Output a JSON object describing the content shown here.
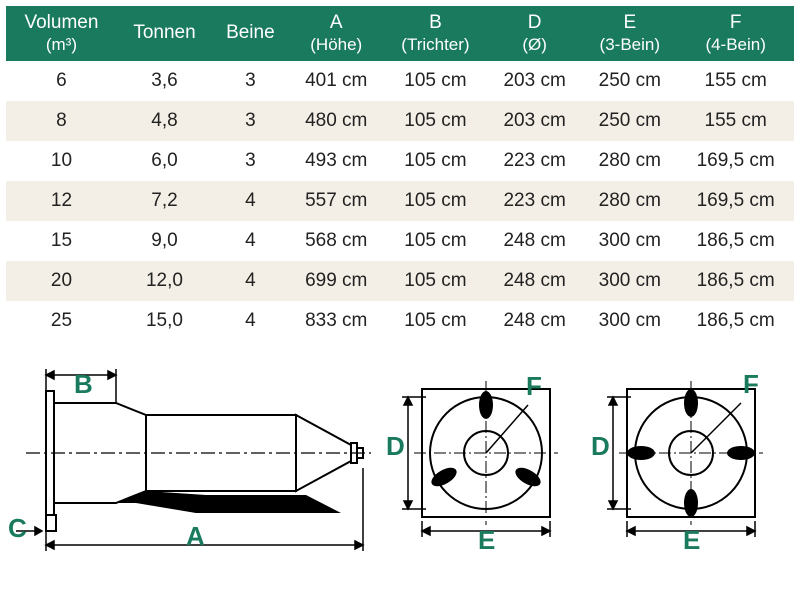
{
  "table": {
    "header_bg": "#1a7a5e",
    "header_fg": "#ffffff",
    "row_alt_bg": "#f4efe6",
    "columns": [
      {
        "title": "Volumen",
        "sub": "(m³)"
      },
      {
        "title": "Tonnen",
        "sub": ""
      },
      {
        "title": "Beine",
        "sub": ""
      },
      {
        "title": "A",
        "sub": "(Höhe)"
      },
      {
        "title": "B",
        "sub": "(Trichter)"
      },
      {
        "title": "D",
        "sub": "(Ø)"
      },
      {
        "title": "E",
        "sub": "(3-Bein)"
      },
      {
        "title": "F",
        "sub": "(4-Bein)"
      }
    ],
    "rows": [
      [
        "6",
        "3,6",
        "3",
        "401 cm",
        "105 cm",
        "203 cm",
        "250 cm",
        "155 cm"
      ],
      [
        "8",
        "4,8",
        "3",
        "480 cm",
        "105 cm",
        "203 cm",
        "250 cm",
        "155 cm"
      ],
      [
        "10",
        "6,0",
        "3",
        "493 cm",
        "105 cm",
        "223 cm",
        "280 cm",
        "169,5 cm"
      ],
      [
        "12",
        "7,2",
        "4",
        "557 cm",
        "105 cm",
        "223 cm",
        "280 cm",
        "169,5 cm"
      ],
      [
        "15",
        "9,0",
        "4",
        "568 cm",
        "105 cm",
        "248 cm",
        "300 cm",
        "186,5 cm"
      ],
      [
        "20",
        "12,0",
        "4",
        "699 cm",
        "105 cm",
        "248 cm",
        "300 cm",
        "186,5 cm"
      ],
      [
        "25",
        "15,0",
        "4",
        "833 cm",
        "105 cm",
        "248 cm",
        "300 cm",
        "186,5 cm"
      ]
    ]
  },
  "diagrams": {
    "label_color": "#1a7a5e",
    "stroke_color": "#000000",
    "labels": {
      "A": "A",
      "B": "B",
      "C": "C",
      "D": "D",
      "E": "E",
      "F": "F"
    },
    "side_w": 370,
    "side_h": 200,
    "top_w": 195,
    "top_h": 200
  }
}
